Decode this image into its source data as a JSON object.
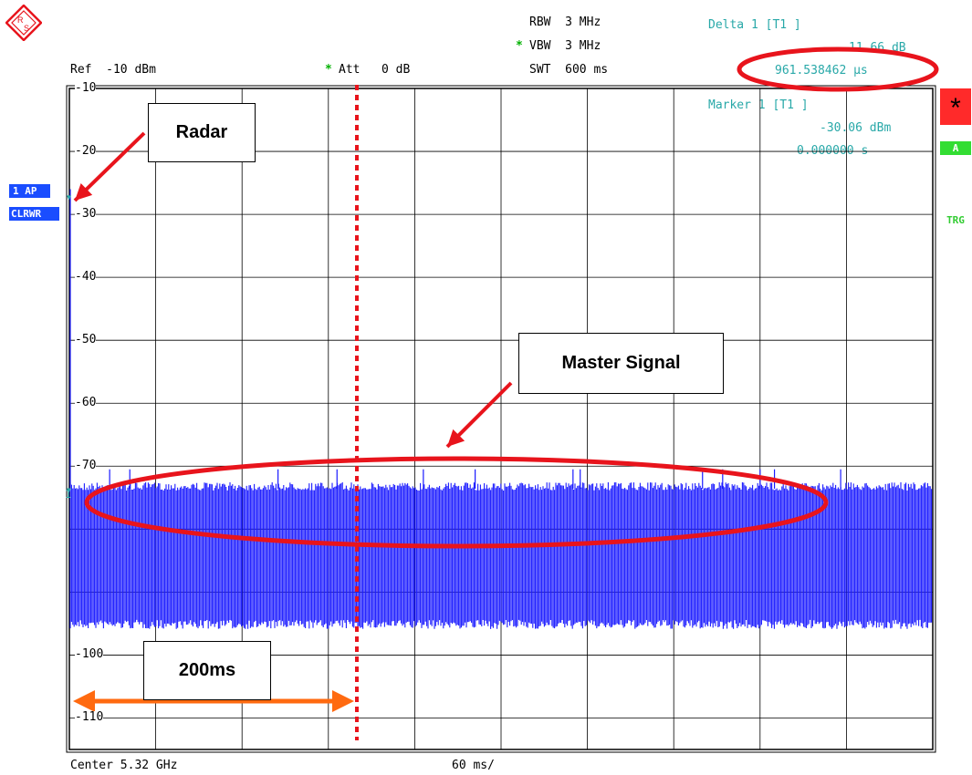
{
  "header": {
    "ref": "Ref  -10 dBm",
    "att_star": "*",
    "att": "Att   0 dB",
    "rbw": "RBW  3 MHz",
    "vbw_star": "*",
    "vbw": "VBW  3 MHz",
    "swt": "SWT  600 ms"
  },
  "delta_marker": {
    "title": "Delta 1 [T1 ]",
    "value_db": "11.66 dB",
    "value_time": "961.538462 µs"
  },
  "marker1": {
    "title": "Marker 1 [T1 ]",
    "value_dbm": "-30.06 dBm",
    "value_time": "0.000000 s"
  },
  "left_badges": {
    "trace_mode": "1 AP",
    "trace_type": "CLRWR"
  },
  "right_badges": {
    "star": "*",
    "a": "A",
    "trg": "TRG"
  },
  "footer": {
    "center": "Center 5.32 GHz",
    "span": "60 ms/"
  },
  "y_ticks": [
    "-10",
    "-20",
    "-30",
    "-40",
    "-50",
    "-60",
    "-70",
    "-100",
    "-110"
  ],
  "marker_label": "1",
  "annotations": {
    "radar": "Radar",
    "master_signal": "Master Signal",
    "duration": "200ms"
  },
  "colors": {
    "trace": "#1a1aff",
    "teal": "#28a8a8",
    "annotation_red": "#e8141c",
    "arrow_orange": "#ff6a10",
    "badge_blue": "#1a4dff",
    "badge_red": "#ff2a2a",
    "badge_green": "#33dd33"
  },
  "chart_data": {
    "type": "line",
    "xlabel": "",
    "ylabel": "",
    "x_unit": "ms",
    "xlim": [
      0,
      600
    ],
    "ylim": [
      -115,
      -10
    ],
    "grid": true,
    "series": [
      {
        "noise_top_dbm": -73,
        "noise_floor_dbm": -95,
        "spike_peak_dbm": -70.5,
        "radar_peak_dbm": -26
      }
    ]
  }
}
